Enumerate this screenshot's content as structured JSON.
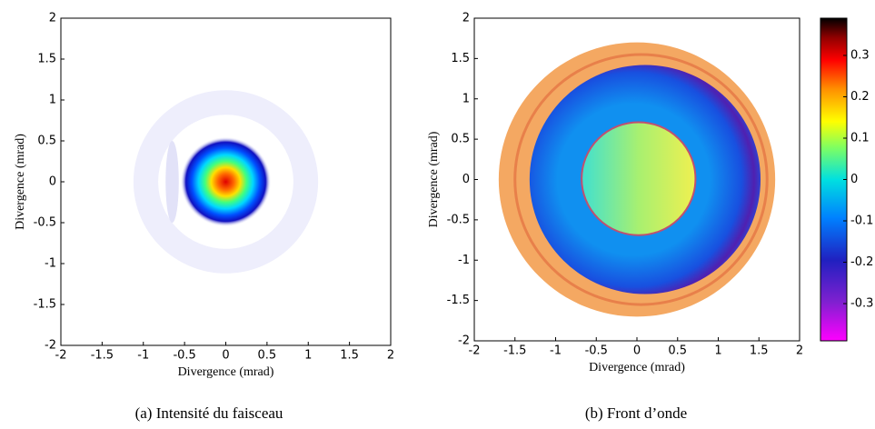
{
  "chart_data": [
    {
      "type": "image",
      "xlabel": "Divergence (mrad)",
      "ylabel": "Divergence (mrad)",
      "caption": "(a) Intensité du faisceau",
      "xlim": [
        -2,
        2
      ],
      "ylim": [
        -2,
        2
      ],
      "xticks": [
        -2,
        -1.5,
        -1,
        -0.5,
        0,
        0.5,
        1,
        1.5,
        2
      ],
      "yticks": [
        -2,
        -1.5,
        -1,
        -0.5,
        0,
        0.5,
        1,
        1.5,
        2
      ],
      "colormap": "jet"
    },
    {
      "type": "image",
      "xlabel": "Divergence (mrad)",
      "ylabel": "Divergence (mrad)",
      "caption": "(b) Front d’onde",
      "xlim": [
        -2,
        2
      ],
      "ylim": [
        -2,
        2
      ],
      "xticks": [
        -2,
        -1.5,
        -1,
        -0.5,
        0,
        0.5,
        1,
        1.5,
        2
      ],
      "yticks": [
        -2,
        -1.5,
        -1,
        -0.5,
        0,
        0.5,
        1,
        1.5,
        2
      ],
      "colormap": "jet",
      "colorbar": {
        "lim": [
          -0.39,
          0.39
        ],
        "ticks": [
          -0.3,
          -0.2,
          -0.1,
          0,
          0.1,
          0.2,
          0.3
        ]
      }
    }
  ]
}
